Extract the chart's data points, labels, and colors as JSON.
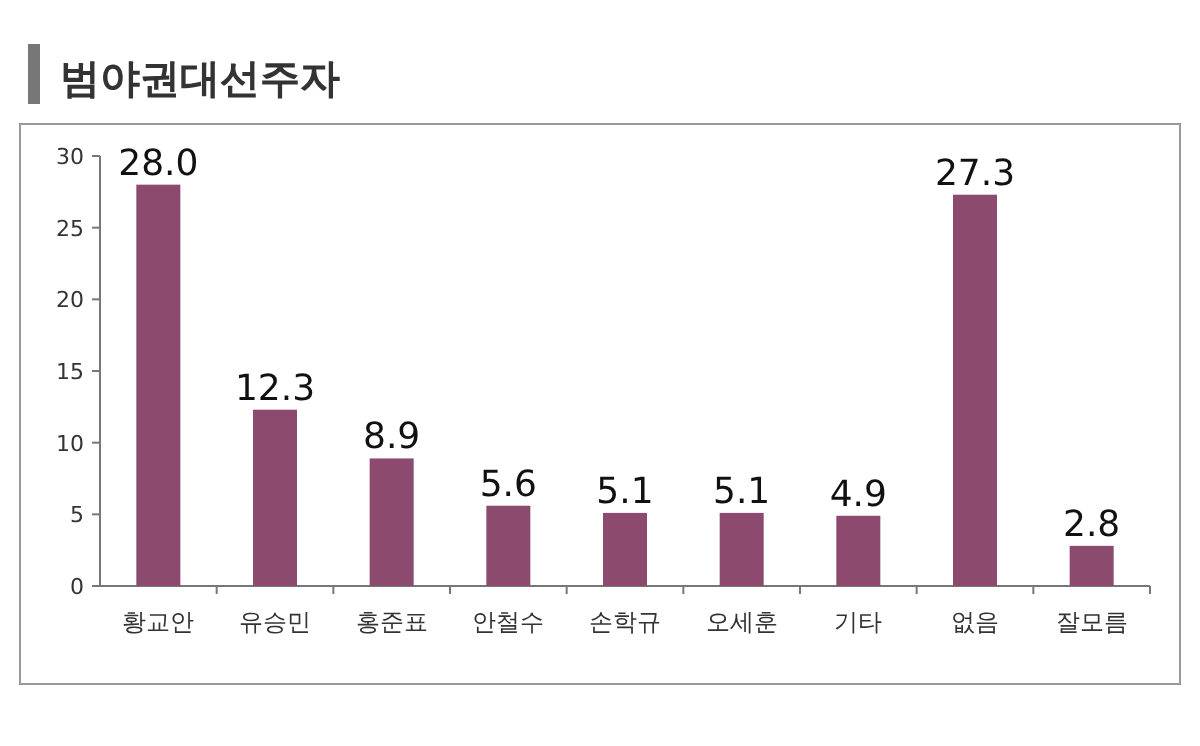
{
  "chart_data": {
    "type": "bar",
    "title": "범야권대선주자",
    "categories": [
      "황교안",
      "유승민",
      "홍준표",
      "안철수",
      "손학규",
      "오세훈",
      "기타",
      "없음",
      "잘모름"
    ],
    "values": [
      28.0,
      12.3,
      8.9,
      5.6,
      5.1,
      5.1,
      4.9,
      27.3,
      2.8
    ],
    "value_labels": [
      "28.0",
      "12.3",
      "8.9",
      "5.6",
      "5.1",
      "5.1",
      "4.9",
      "27.3",
      "2.8"
    ],
    "color": "#8b4a6e",
    "ylim": [
      0,
      30
    ],
    "yticks": [
      0,
      5,
      10,
      15,
      20,
      25,
      30
    ]
  }
}
